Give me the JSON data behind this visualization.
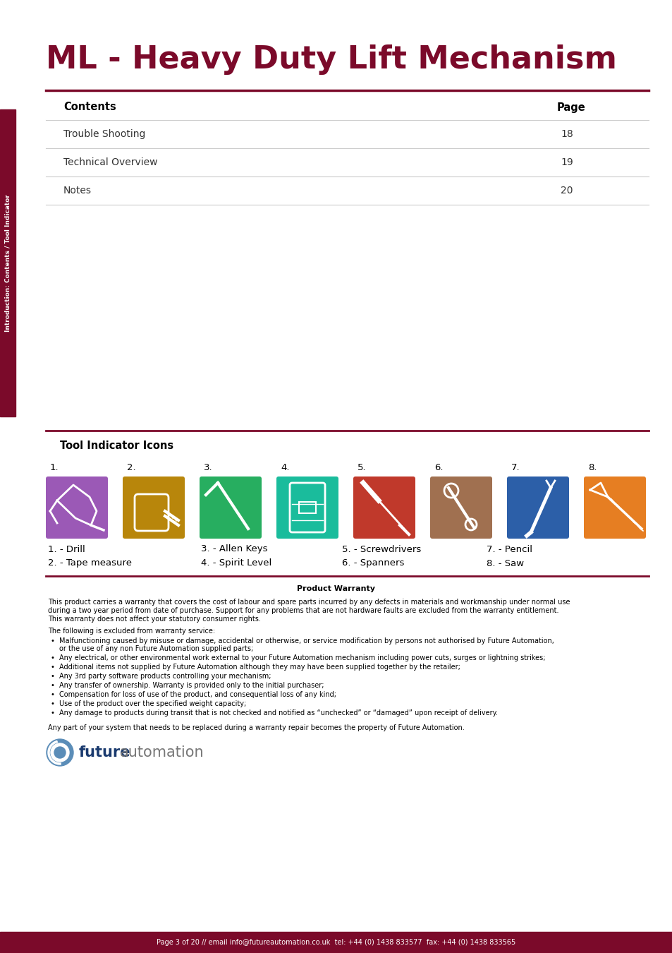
{
  "title": "ML - Heavy Duty Lift Mechanism",
  "title_color": "#7B0A2A",
  "title_fontsize": 32,
  "sidebar_color": "#7B0A2A",
  "sidebar_text": "Introduction: Contents / Tool Indicator",
  "header_line_color": "#7B0A2A",
  "contents_header": "Contents",
  "page_header": "Page",
  "contents_items": [
    {
      "label": "Trouble Shooting",
      "page": "18"
    },
    {
      "label": "Technical Overview",
      "page": "19"
    },
    {
      "label": "Notes",
      "page": "20"
    }
  ],
  "tool_section_title": "Tool Indicator Icons",
  "tool_numbers": [
    "1.",
    "2.",
    "3.",
    "4.",
    "5.",
    "6.",
    "7.",
    "8."
  ],
  "tool_colors": [
    "#9B59B6",
    "#B8860B",
    "#27AE60",
    "#1ABC9C",
    "#C0392B",
    "#A07050",
    "#2C5FA8",
    "#E67E22"
  ],
  "tool_labels_col1": [
    "1. - Drill",
    "2. - Tape measure"
  ],
  "tool_labels_col2": [
    "3. - Allen Keys",
    "4. - Spirit Level"
  ],
  "tool_labels_col3": [
    "5. - Screwdrivers",
    "6. - Spanners"
  ],
  "tool_labels_col4": [
    "7. - Pencil",
    "8. - Saw"
  ],
  "warranty_title": "Product Warranty",
  "warranty_text1": "This product carries a warranty that covers the cost of labour and spare parts incurred by any defects in materials and workmanship under normal use during a two year period from date of purchase. Support for any problems that are not hardware faults are excluded from the warranty entitlement. This warranty does not affect your statutory consumer rights.",
  "warranty_text2": "The following is excluded from warranty service:",
  "warranty_bullets": [
    "Malfunctioning caused by misuse or damage, accidental or otherwise, or service modification by persons not authorised by Future Automation, or the use of any non Future Automation supplied parts;",
    "Any electrical, or other environmental work external to your Future Automation mechanism including power cuts, surges or lightning strikes;",
    "Additional items not supplied by Future Automation although they may have been supplied together by the retailer;",
    "Any 3rd party software products controlling your mechanism;",
    "Any transfer of ownership. Warranty is provided only to the initial purchaser;",
    "Compensation for loss of use of the product, and consequential loss of any kind;",
    "Use of the product over the specified weight capacity;",
    "Any damage to products during transit that is not checked and notified as “unchecked” or “damaged” upon receipt of delivery."
  ],
  "warranty_footer": "Any part of your system that needs to be replaced during a warranty repair becomes the property of Future Automation.",
  "footer_text": "Page 3 of 20 // email info@futureautomation.co.uk  tel: +44 (0) 1438 833577  fax: +44 (0) 1438 833565",
  "footer_bg": "#7B0A2A",
  "footer_text_color": "#FFFFFF",
  "bg_color": "#FFFFFF",
  "line_color_light": "#CCCCCC"
}
